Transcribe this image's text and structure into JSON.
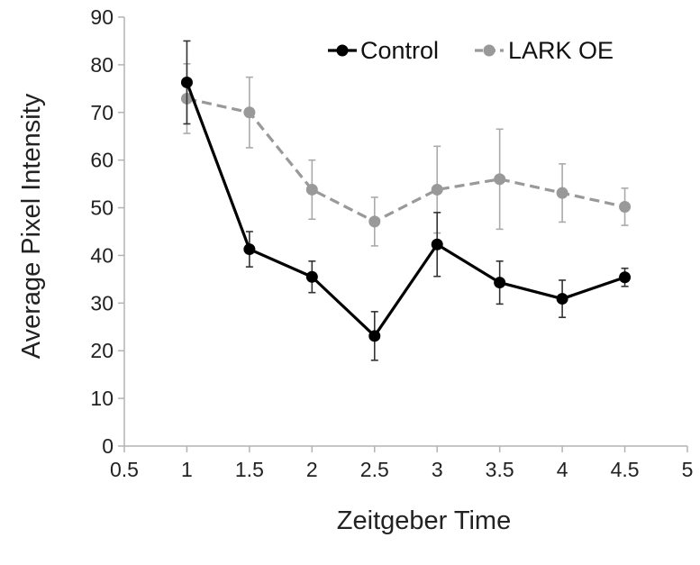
{
  "chart_data": {
    "type": "line",
    "xlabel": "Zeitgeber Time",
    "ylabel": "Average Pixel Intensity",
    "xlim": [
      0.5,
      5
    ],
    "ylim": [
      0,
      90
    ],
    "x_ticks": [
      0.5,
      1,
      1.5,
      2,
      2.5,
      3,
      3.5,
      4,
      4.5,
      5
    ],
    "y_ticks": [
      0,
      10,
      20,
      30,
      40,
      50,
      60,
      70,
      80,
      90
    ],
    "grid": false,
    "legend_position": "top-right",
    "series": [
      {
        "name": "Control",
        "color": "#000000",
        "line_style": "solid",
        "x": [
          1,
          1.5,
          2,
          2.5,
          3,
          3.5,
          4,
          4.5
        ],
        "y": [
          76.3,
          41.3,
          35.5,
          23.1,
          42.3,
          34.3,
          30.9,
          35.4
        ],
        "error_upper": [
          85.0,
          45.0,
          38.8,
          28.2,
          49.0,
          38.8,
          34.8,
          37.3
        ],
        "error_lower": [
          67.6,
          37.6,
          32.2,
          18.0,
          35.6,
          29.8,
          27.0,
          33.5
        ]
      },
      {
        "name": "LARK OE",
        "color": "#999999",
        "line_style": "dashed",
        "x": [
          1,
          1.5,
          2,
          2.5,
          3,
          3.5,
          4,
          4.5
        ],
        "y": [
          72.9,
          70.0,
          53.8,
          47.1,
          53.8,
          56.0,
          53.1,
          50.2
        ],
        "error_upper": [
          80.2,
          77.4,
          60.0,
          52.2,
          62.9,
          66.5,
          59.2,
          54.1
        ],
        "error_lower": [
          65.6,
          62.6,
          47.6,
          42.0,
          44.7,
          45.5,
          47.0,
          46.3
        ]
      }
    ]
  }
}
